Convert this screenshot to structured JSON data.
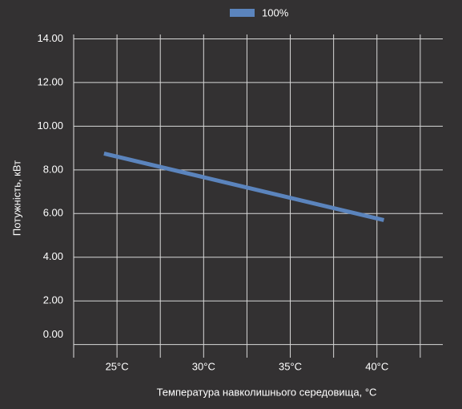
{
  "chart_data": {
    "type": "line",
    "x_label": "Температура навколишнього середовища, °C",
    "y_label": "Потужність, кВт",
    "x": [
      24.25,
      40.4
    ],
    "series": [
      {
        "name": "100%",
        "color": "#5b84bd",
        "values": [
          8.75,
          5.7
        ]
      }
    ],
    "xlim": [
      22.5,
      43.8
    ],
    "xticks": [
      {
        "value": 25,
        "label": "25°C"
      },
      {
        "value": 30,
        "label": "30°C"
      },
      {
        "value": 35,
        "label": "35°C"
      },
      {
        "value": 40,
        "label": "40°C"
      }
    ],
    "x_gridlines": [
      25,
      27.5,
      30,
      32.5,
      35,
      37.5,
      40,
      42.5
    ],
    "ylim": [
      -0.6,
      14.2
    ],
    "yticks": [
      {
        "value": 0,
        "label": "0.00"
      },
      {
        "value": 2,
        "label": "2.00"
      },
      {
        "value": 4,
        "label": "4.00"
      },
      {
        "value": 6,
        "label": "6.00"
      },
      {
        "value": 8,
        "label": "8.00"
      },
      {
        "value": 10,
        "label": "10.00"
      },
      {
        "value": 12,
        "label": "12.00"
      },
      {
        "value": 14,
        "label": "14.00"
      }
    ],
    "grid": true,
    "legend": "top"
  }
}
